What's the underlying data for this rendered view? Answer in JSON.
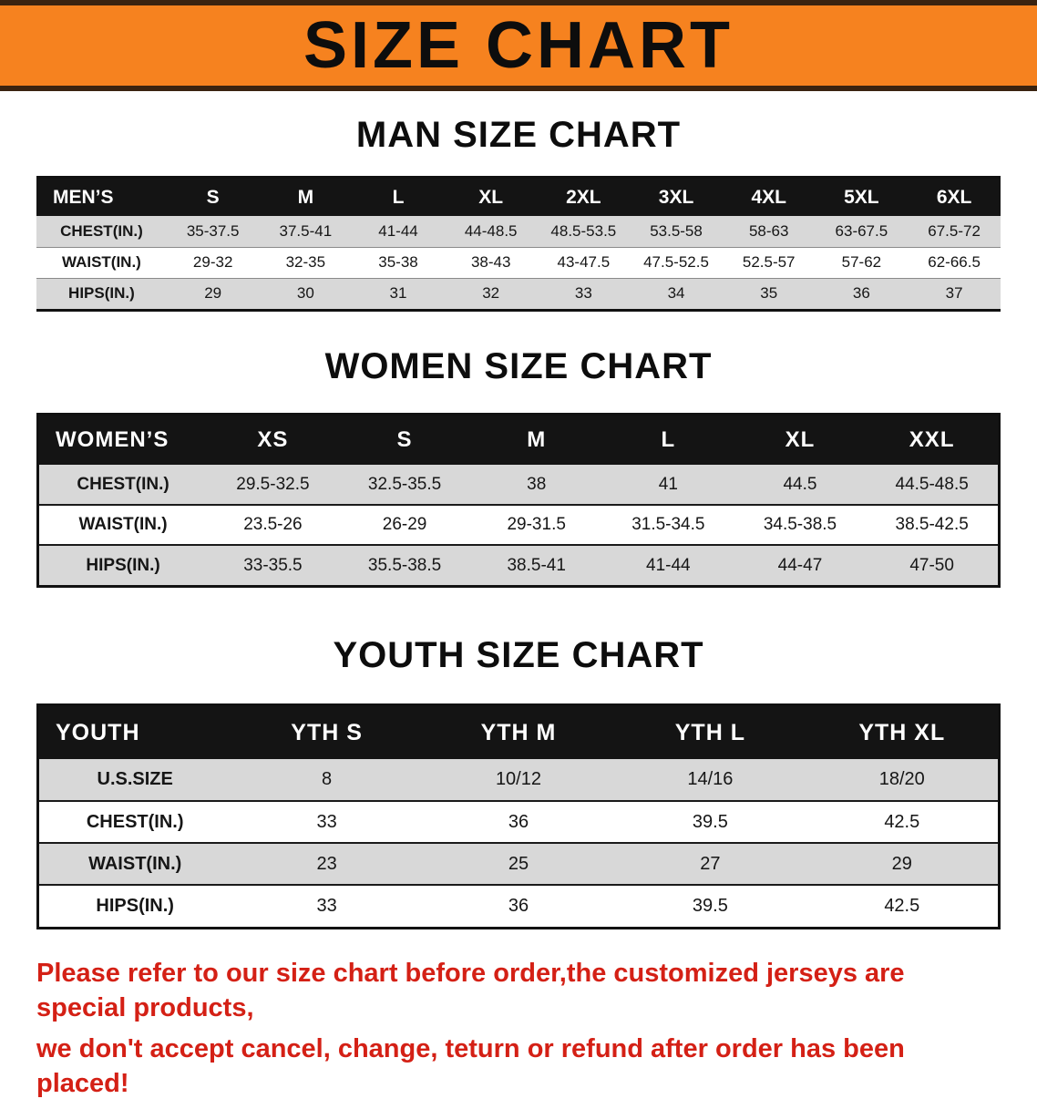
{
  "banner": {
    "title": "SIZE CHART"
  },
  "men": {
    "heading": "MAN SIZE CHART",
    "header": [
      "MEN’S",
      "S",
      "M",
      "L",
      "XL",
      "2XL",
      "3XL",
      "4XL",
      "5XL",
      "6XL"
    ],
    "rows": [
      [
        "CHEST(IN.)",
        "35-37.5",
        "37.5-41",
        "41-44",
        "44-48.5",
        "48.5-53.5",
        "53.5-58",
        "58-63",
        "63-67.5",
        "67.5-72"
      ],
      [
        "WAIST(IN.)",
        "29-32",
        "32-35",
        "35-38",
        "38-43",
        "43-47.5",
        "47.5-52.5",
        "52.5-57",
        "57-62",
        "62-66.5"
      ],
      [
        "HIPS(IN.)",
        "29",
        "30",
        "31",
        "32",
        "33",
        "34",
        "35",
        "36",
        "37"
      ]
    ]
  },
  "women": {
    "heading": "WOMEN SIZE CHART",
    "header": [
      "WOMEN’S",
      "XS",
      "S",
      "M",
      "L",
      "XL",
      "XXL"
    ],
    "rows": [
      [
        "CHEST(IN.)",
        "29.5-32.5",
        "32.5-35.5",
        "38",
        "41",
        "44.5",
        "44.5-48.5"
      ],
      [
        "WAIST(IN.)",
        "23.5-26",
        "26-29",
        "29-31.5",
        "31.5-34.5",
        "34.5-38.5",
        "38.5-42.5"
      ],
      [
        "HIPS(IN.)",
        "33-35.5",
        "35.5-38.5",
        "38.5-41",
        "41-44",
        "44-47",
        "47-50"
      ]
    ]
  },
  "youth": {
    "heading": "YOUTH SIZE CHART",
    "header": [
      "YOUTH",
      "YTH S",
      "YTH M",
      "YTH L",
      "YTH XL"
    ],
    "rows": [
      [
        "U.S.SIZE",
        "8",
        "10/12",
        "14/16",
        "18/20"
      ],
      [
        "CHEST(IN.)",
        "33",
        "36",
        "39.5",
        "42.5"
      ],
      [
        "WAIST(IN.)",
        "23",
        "25",
        "27",
        "29"
      ],
      [
        "HIPS(IN.)",
        "33",
        "36",
        "39.5",
        "42.5"
      ]
    ]
  },
  "footer": {
    "line1": "Please refer to our size chart before order,the customized jerseys are special products,",
    "line2": "we don't accept cancel, change, teturn or refund after order has been placed!"
  },
  "colors": {
    "banner_bg": "#f6821f",
    "banner_border": "#3a2310",
    "header_bg": "#141414",
    "header_fg": "#ffffff",
    "stripe": "#d8d8d8",
    "note_color": "#d42015"
  }
}
